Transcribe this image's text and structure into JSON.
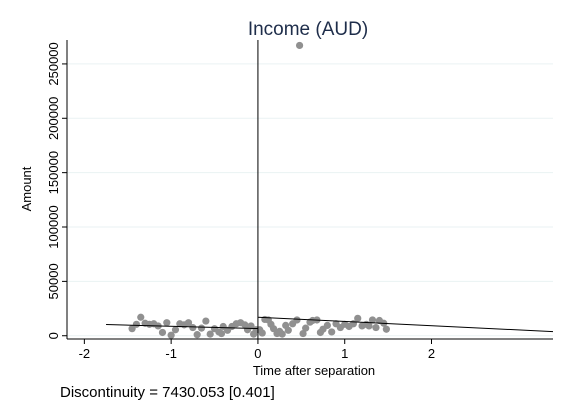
{
  "chart_data": {
    "type": "scatter",
    "title": "Income (AUD)",
    "xlabel": "Time after separation",
    "ylabel": "Amount",
    "xlim": [
      -2.2,
      3.4
    ],
    "ylim": [
      -3000,
      272000
    ],
    "xticks": [
      -2,
      -1,
      0,
      1,
      2
    ],
    "xtick_labels": [
      "-2",
      "-1",
      "0",
      "1",
      "2"
    ],
    "yticks": [
      0,
      50000,
      100000,
      150000,
      200000,
      250000
    ],
    "ytick_labels": [
      "0",
      "50000",
      "100000",
      "150000",
      "200000",
      "250000"
    ],
    "grid": true,
    "cutoff": 0,
    "points": [
      [
        -1.45,
        6500
      ],
      [
        -1.4,
        10500
      ],
      [
        -1.35,
        17000
      ],
      [
        -1.3,
        11500
      ],
      [
        -1.25,
        10500
      ],
      [
        -1.2,
        11000
      ],
      [
        -1.15,
        9000
      ],
      [
        -1.1,
        3000
      ],
      [
        -1.05,
        12000
      ],
      [
        -1.0,
        500
      ],
      [
        -0.95,
        5500
      ],
      [
        -0.9,
        11000
      ],
      [
        -0.85,
        10000
      ],
      [
        -0.8,
        12000
      ],
      [
        -0.75,
        7500
      ],
      [
        -0.7,
        1000
      ],
      [
        -0.65,
        7000
      ],
      [
        -0.6,
        13500
      ],
      [
        -0.55,
        1500
      ],
      [
        -0.5,
        6500
      ],
      [
        -0.45,
        3500
      ],
      [
        -0.42,
        2000
      ],
      [
        -0.4,
        8500
      ],
      [
        -0.35,
        5000
      ],
      [
        -0.3,
        8500
      ],
      [
        -0.25,
        11000
      ],
      [
        -0.2,
        12000
      ],
      [
        -0.15,
        10000
      ],
      [
        -0.12,
        5500
      ],
      [
        -0.08,
        9000
      ],
      [
        -0.05,
        1500
      ],
      [
        -0.02,
        5500
      ],
      [
        0.02,
        5500
      ],
      [
        0.05,
        2500
      ],
      [
        0.08,
        15000
      ],
      [
        0.12,
        14500
      ],
      [
        0.15,
        10500
      ],
      [
        0.18,
        6500
      ],
      [
        0.22,
        2000
      ],
      [
        0.25,
        4000
      ],
      [
        0.28,
        1500
      ],
      [
        0.32,
        9500
      ],
      [
        0.35,
        5000
      ],
      [
        0.4,
        11000
      ],
      [
        0.45,
        14500
      ],
      [
        0.48,
        267000
      ],
      [
        0.52,
        2000
      ],
      [
        0.55,
        7000
      ],
      [
        0.6,
        12500
      ],
      [
        0.63,
        14000
      ],
      [
        0.68,
        14500
      ],
      [
        0.72,
        3000
      ],
      [
        0.75,
        6000
      ],
      [
        0.8,
        9500
      ],
      [
        0.85,
        3500
      ],
      [
        0.9,
        11000
      ],
      [
        0.95,
        7500
      ],
      [
        1.0,
        10500
      ],
      [
        1.05,
        8500
      ],
      [
        1.1,
        11000
      ],
      [
        1.15,
        16000
      ],
      [
        1.2,
        9000
      ],
      [
        1.25,
        10500
      ],
      [
        1.28,
        9000
      ],
      [
        1.32,
        14500
      ],
      [
        1.36,
        7500
      ],
      [
        1.4,
        14000
      ],
      [
        1.45,
        11500
      ],
      [
        1.48,
        6000
      ]
    ],
    "fit_left": [
      [
        -1.75,
        10300
      ],
      [
        0,
        6600
      ]
    ],
    "fit_right": [
      [
        0,
        17000
      ],
      [
        3.4,
        3800
      ]
    ],
    "annotation": "Discontinuity = 7430.053 [0.401]"
  }
}
